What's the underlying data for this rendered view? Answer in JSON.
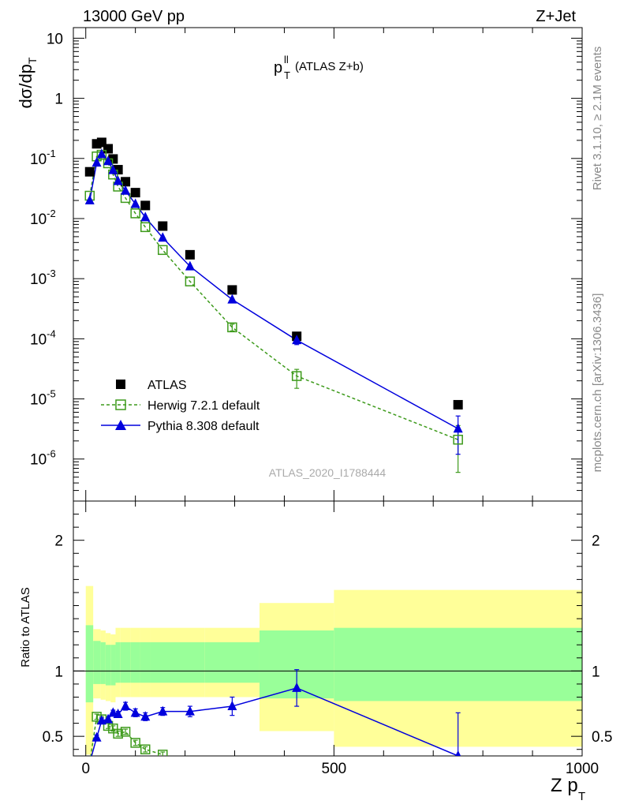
{
  "header": {
    "energy_label": "13000 GeV pp",
    "process_label": "Z+Jet",
    "plot_title_main": "p",
    "plot_title_sup": "ll",
    "plot_title_sub": "T",
    "plot_title_rest": "(ATLAS Z+b)",
    "side_rivet": "Rivet 3.1.10, ≥ 2.1M events",
    "side_mcplots": "mcplots.cern.ch [arXiv:1306.3436]",
    "watermark": "ATLAS_2020_I1788444"
  },
  "chart_data": [
    {
      "type": "scatter",
      "title": "pT ll (ATLAS Z+b)",
      "ylabel": "dσ/dp_T",
      "xlabel": "Z p_T",
      "ylog": true,
      "ylim": [
        2e-07,
        15
      ],
      "xlim": [
        -25,
        1000
      ],
      "yticks": [
        {
          "value": 1e-06,
          "base": "10",
          "exp": "-6"
        },
        {
          "value": 1e-05,
          "base": "10",
          "exp": "-5"
        },
        {
          "value": 0.0001,
          "base": "10",
          "exp": "-4"
        },
        {
          "value": 0.001,
          "base": "10",
          "exp": "-3"
        },
        {
          "value": 0.01,
          "base": "10",
          "exp": "-2"
        },
        {
          "value": 0.1,
          "base": "10",
          "exp": "-1"
        },
        {
          "value": 1,
          "base": "1",
          "exp": ""
        },
        {
          "value": 10,
          "base": "10",
          "exp": ""
        }
      ],
      "legend": [
        {
          "name": "ATLAS",
          "marker": "filled-square",
          "color": "#000000"
        },
        {
          "name": "Herwig 7.2.1 default",
          "marker": "open-square",
          "color": "#3d9a1b",
          "dashed": true
        },
        {
          "name": "Pythia 8.308 default",
          "marker": "filled-triangle",
          "color": "#0000dd"
        }
      ],
      "series": [
        {
          "name": "ATLAS",
          "x": [
            8,
            22,
            32,
            45,
            55,
            65,
            80,
            100,
            120,
            155,
            210,
            295,
            425,
            750
          ],
          "y": [
            0.06,
            0.175,
            0.185,
            0.145,
            0.098,
            0.065,
            0.041,
            0.027,
            0.0165,
            0.0075,
            0.0025,
            0.00065,
            0.00011,
            8e-06
          ]
        },
        {
          "name": "Herwig 7.2.1 default",
          "x": [
            8,
            22,
            32,
            45,
            55,
            65,
            80,
            100,
            120,
            155,
            210,
            295,
            425,
            750
          ],
          "y": [
            0.024,
            0.108,
            0.115,
            0.083,
            0.054,
            0.034,
            0.022,
            0.0122,
            0.0072,
            0.003,
            0.0009,
            0.000155,
            2.4e-05,
            2.1e-06
          ],
          "yerr_lo": [
            0,
            0,
            0,
            0,
            0,
            0,
            0,
            0,
            0,
            0,
            0,
            2e-05,
            9e-06,
            1.5e-06
          ],
          "yerr_hi": [
            0,
            0,
            0,
            0,
            0,
            0,
            0,
            0,
            0,
            0,
            0,
            2e-05,
            7e-06,
            1.5e-06
          ]
        },
        {
          "name": "Pythia 8.308 default",
          "x": [
            8,
            22,
            32,
            45,
            55,
            65,
            80,
            100,
            120,
            155,
            210,
            295,
            425,
            750
          ],
          "y": [
            0.02,
            0.085,
            0.118,
            0.09,
            0.064,
            0.042,
            0.029,
            0.0175,
            0.0105,
            0.0048,
            0.0016,
            0.00045,
            9.5e-05,
            3.2e-06
          ],
          "yerr_lo": [
            0,
            0,
            0,
            0,
            0,
            0,
            0,
            0,
            0,
            0,
            0,
            0,
            1.5e-05,
            2e-06
          ],
          "yerr_hi": [
            0,
            0,
            0,
            0,
            0,
            0,
            0,
            0,
            0,
            0,
            0,
            0,
            1.5e-05,
            2e-06
          ]
        }
      ]
    },
    {
      "type": "scatter",
      "ylabel": "Ratio to ATLAS",
      "xlabel": "Z p_T",
      "ylim": [
        0.35,
        2.3
      ],
      "xlim": [
        -25,
        1000
      ],
      "yticks": [
        0.5,
        1,
        2
      ],
      "xticks": [
        0,
        500,
        1000
      ],
      "reference_line": 1,
      "bands": {
        "bin_edges": [
          0,
          15,
          30,
          40,
          50,
          60,
          70,
          90,
          110,
          130,
          180,
          240,
          350,
          500,
          1000
        ],
        "inner_lo": [
          0.76,
          0.9,
          0.9,
          0.89,
          0.89,
          0.91,
          0.91,
          0.91,
          0.91,
          0.91,
          0.91,
          0.91,
          0.79,
          0.77
        ],
        "inner_hi": [
          1.35,
          1.23,
          1.22,
          1.2,
          1.2,
          1.22,
          1.22,
          1.22,
          1.22,
          1.22,
          1.22,
          1.22,
          1.31,
          1.33
        ],
        "outer_lo": [
          0.36,
          0.79,
          0.78,
          0.77,
          0.76,
          0.8,
          0.8,
          0.8,
          0.8,
          0.8,
          0.8,
          0.8,
          0.54,
          0.42
        ],
        "outer_hi": [
          1.65,
          1.32,
          1.31,
          1.29,
          1.28,
          1.33,
          1.33,
          1.33,
          1.33,
          1.33,
          1.33,
          1.33,
          1.52,
          1.62
        ]
      },
      "series": [
        {
          "name": "Herwig 7.2.1 default",
          "x": [
            8,
            22,
            32,
            45,
            55,
            65,
            80,
            100,
            120,
            155
          ],
          "y": [
            0.3,
            0.65,
            0.63,
            0.58,
            0.56,
            0.52,
            0.535,
            0.45,
            0.4,
            0.36
          ],
          "yerr": [
            0,
            0.02,
            0.02,
            0.02,
            0.02,
            0.02,
            0.02,
            0.02,
            0.02,
            0.02
          ]
        },
        {
          "name": "Pythia 8.308 default",
          "x": [
            8,
            22,
            32,
            45,
            55,
            65,
            80,
            100,
            120,
            155,
            210,
            295,
            425,
            750
          ],
          "y": [
            0.3,
            0.49,
            0.62,
            0.63,
            0.68,
            0.67,
            0.73,
            0.68,
            0.65,
            0.69,
            0.69,
            0.73,
            0.87,
            0.35
          ],
          "yerr": [
            0,
            0.02,
            0.02,
            0.02,
            0.02,
            0.02,
            0.03,
            0.03,
            0.03,
            0.03,
            0.04,
            0.07,
            0.14,
            0.33
          ]
        }
      ]
    }
  ]
}
